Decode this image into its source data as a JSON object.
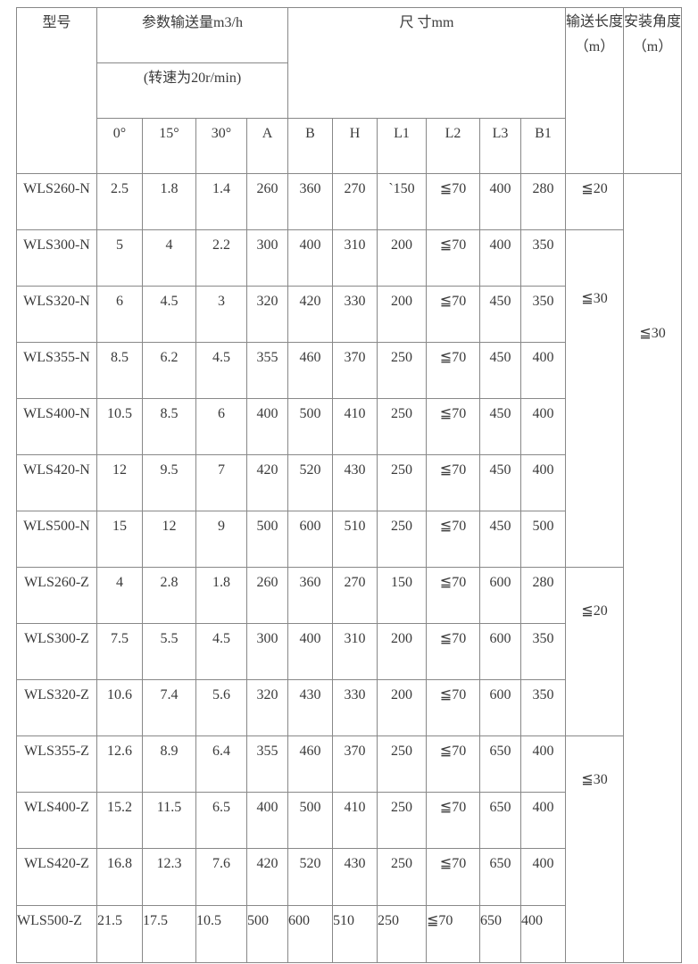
{
  "header": {
    "model": "型号",
    "flow": "参数输送量m3/h",
    "speed": "(转速为20r/min)",
    "size": "尺 寸mm",
    "length": "输送长度（m）",
    "angle": "安装角度（m）",
    "columns": [
      "0°",
      "15°",
      "30°",
      "A",
      "B",
      "H",
      "L1",
      "L2",
      "L3",
      "B1"
    ]
  },
  "rows": [
    [
      "WLS260-N",
      "2.5",
      "1.8",
      "1.4",
      "260",
      "360",
      "270",
      "`150",
      "≦70",
      "400",
      "280"
    ],
    [
      "WLS300-N",
      "5",
      "4",
      "2.2",
      "300",
      "400",
      "310",
      "200",
      "≦70",
      "400",
      "350"
    ],
    [
      "WLS320-N",
      "6",
      "4.5",
      "3",
      "320",
      "420",
      "330",
      "200",
      "≦70",
      "450",
      "350"
    ],
    [
      "WLS355-N",
      "8.5",
      "6.2",
      "4.5",
      "355",
      "460",
      "370",
      "250",
      "≦70",
      "450",
      "400"
    ],
    [
      "WLS400-N",
      "10.5",
      "8.5",
      "6",
      "400",
      "500",
      "410",
      "250",
      "≦70",
      "450",
      "400"
    ],
    [
      "WLS420-N",
      "12",
      "9.5",
      "7",
      "420",
      "520",
      "430",
      "250",
      "≦70",
      "450",
      "400"
    ],
    [
      "WLS500-N",
      "15",
      "12",
      "9",
      "500",
      "600",
      "510",
      "250",
      "≦70",
      "450",
      "500"
    ],
    [
      "WLS260-Z",
      "4",
      "2.8",
      "1.8",
      "260",
      "360",
      "270",
      "150",
      "≦70",
      "600",
      "280"
    ],
    [
      "WLS300-Z",
      "7.5",
      "5.5",
      "4.5",
      "300",
      "400",
      "310",
      "200",
      "≦70",
      "600",
      "350"
    ],
    [
      "WLS320-Z",
      "10.6",
      "7.4",
      "5.6",
      "320",
      "430",
      "330",
      "200",
      "≦70",
      "600",
      "350"
    ],
    [
      "WLS355-Z",
      "12.6",
      "8.9",
      "6.4",
      "355",
      "460",
      "370",
      "250",
      "≦70",
      "650",
      "400"
    ],
    [
      "WLS400-Z",
      "15.2",
      "11.5",
      "6.5",
      "400",
      "500",
      "410",
      "250",
      "≦70",
      "650",
      "400"
    ],
    [
      "WLS420-Z",
      "16.8",
      "12.3",
      "7.6",
      "420",
      "520",
      "430",
      "250",
      "≦70",
      "650",
      "400"
    ],
    [
      "WLS500-Z",
      "21.5",
      "17.5",
      "10.5",
      "500",
      "600",
      "510",
      "250",
      "≦70",
      "650",
      "400"
    ]
  ],
  "length_groups": [
    {
      "value": "≦20",
      "span": 1
    },
    {
      "value": "≦30",
      "span": 6
    },
    {
      "value": "≦20",
      "span": 3
    },
    {
      "value": "≦30",
      "span": 4
    }
  ],
  "angle_value": "≦30"
}
